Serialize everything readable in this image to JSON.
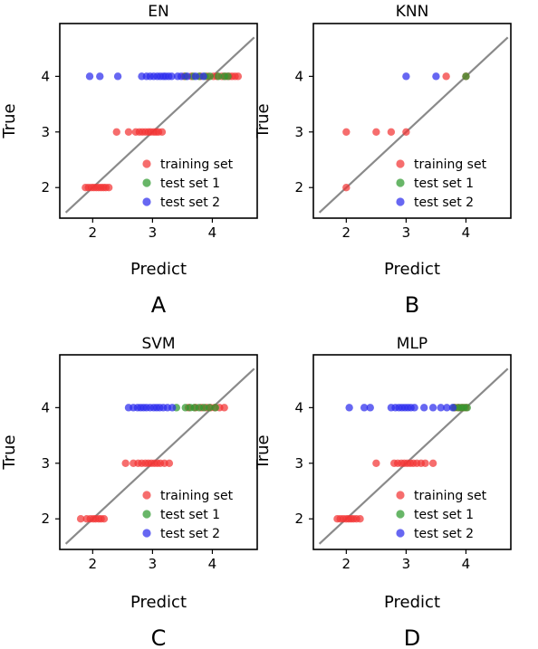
{
  "colors": {
    "training": "#f23434",
    "test1": "#2e9a2e",
    "test2": "#2d2ded",
    "identity": "#8a8a8a"
  },
  "chart_data": [
    {
      "type": "scatter",
      "title": "EN",
      "panel_label": "A",
      "xlabel": "Predict",
      "ylabel": "True",
      "xlim": [
        1.45,
        4.75
      ],
      "ylim": [
        1.45,
        4.95
      ],
      "xticks": [
        "2",
        "3",
        "4"
      ],
      "yticks": [
        "2",
        "3",
        "4"
      ],
      "identity_line": [
        1.55,
        4.7
      ],
      "legend": "bottom-right",
      "series": [
        {
          "name": "training set",
          "key": "training",
          "points": [
            [
              1.88,
              2
            ],
            [
              1.93,
              2
            ],
            [
              1.98,
              2
            ],
            [
              2.02,
              2
            ],
            [
              2.06,
              2
            ],
            [
              2.1,
              2
            ],
            [
              2.14,
              2
            ],
            [
              2.18,
              2
            ],
            [
              2.22,
              2
            ],
            [
              2.27,
              2
            ],
            [
              2.4,
              3
            ],
            [
              2.6,
              3
            ],
            [
              2.72,
              3
            ],
            [
              2.78,
              3
            ],
            [
              2.83,
              3
            ],
            [
              2.88,
              3
            ],
            [
              2.93,
              3
            ],
            [
              2.97,
              3
            ],
            [
              3.02,
              3
            ],
            [
              3.06,
              3
            ],
            [
              3.1,
              3
            ],
            [
              3.16,
              3
            ],
            [
              3.53,
              4
            ],
            [
              3.65,
              4
            ],
            [
              3.8,
              4
            ],
            [
              3.92,
              4
            ],
            [
              4.02,
              4
            ],
            [
              4.08,
              4
            ],
            [
              4.16,
              4
            ],
            [
              4.22,
              4
            ],
            [
              4.28,
              4
            ],
            [
              4.33,
              4
            ],
            [
              4.38,
              4
            ],
            [
              4.43,
              4
            ]
          ]
        },
        {
          "name": "test set 1",
          "key": "test1",
          "points": [
            [
              3.55,
              4
            ],
            [
              3.68,
              4
            ],
            [
              3.78,
              4
            ],
            [
              3.88,
              4
            ],
            [
              3.96,
              4
            ],
            [
              4.1,
              4
            ],
            [
              4.2,
              4
            ],
            [
              4.26,
              4
            ]
          ]
        },
        {
          "name": "test set 2",
          "key": "test2",
          "points": [
            [
              1.95,
              4
            ],
            [
              2.12,
              4
            ],
            [
              2.42,
              4
            ],
            [
              2.82,
              4
            ],
            [
              2.9,
              4
            ],
            [
              2.96,
              4
            ],
            [
              3.02,
              4
            ],
            [
              3.08,
              4
            ],
            [
              3.13,
              4
            ],
            [
              3.18,
              4
            ],
            [
              3.22,
              4
            ],
            [
              3.27,
              4
            ],
            [
              3.32,
              4
            ],
            [
              3.42,
              4
            ],
            [
              3.48,
              4
            ],
            [
              3.58,
              4
            ],
            [
              3.72,
              4
            ],
            [
              3.85,
              4
            ]
          ]
        }
      ]
    },
    {
      "type": "scatter",
      "title": "KNN",
      "panel_label": "B",
      "xlabel": "Predict",
      "ylabel": "True",
      "xlim": [
        1.45,
        4.75
      ],
      "ylim": [
        1.45,
        4.95
      ],
      "xticks": [
        "2",
        "3",
        "4"
      ],
      "yticks": [
        "2",
        "3",
        "4"
      ],
      "identity_line": [
        1.55,
        4.7
      ],
      "legend": "bottom-right",
      "series": [
        {
          "name": "training set",
          "key": "training",
          "points": [
            [
              2,
              2
            ],
            [
              2,
              3
            ],
            [
              2.5,
              3
            ],
            [
              2.75,
              3
            ],
            [
              3,
              3
            ],
            [
              3.67,
              4
            ],
            [
              4,
              4
            ]
          ]
        },
        {
          "name": "test set 1",
          "key": "test1",
          "points": [
            [
              4,
              4
            ]
          ]
        },
        {
          "name": "test set 2",
          "key": "test2",
          "points": [
            [
              3,
              4
            ],
            [
              3.5,
              4
            ]
          ]
        }
      ]
    },
    {
      "type": "scatter",
      "title": "SVM",
      "panel_label": "C",
      "xlabel": "Predict",
      "ylabel": "True",
      "xlim": [
        1.45,
        4.75
      ],
      "ylim": [
        1.45,
        4.95
      ],
      "xticks": [
        "2",
        "3",
        "4"
      ],
      "yticks": [
        "2",
        "3",
        "4"
      ],
      "identity_line": [
        1.55,
        4.7
      ],
      "legend": "bottom-right",
      "series": [
        {
          "name": "training set",
          "key": "training",
          "points": [
            [
              1.8,
              2
            ],
            [
              1.9,
              2
            ],
            [
              1.96,
              2
            ],
            [
              2.01,
              2
            ],
            [
              2.05,
              2
            ],
            [
              2.1,
              2
            ],
            [
              2.14,
              2
            ],
            [
              2.19,
              2
            ],
            [
              2.55,
              3
            ],
            [
              2.68,
              3
            ],
            [
              2.76,
              3
            ],
            [
              2.82,
              3
            ],
            [
              2.88,
              3
            ],
            [
              2.93,
              3
            ],
            [
              2.98,
              3
            ],
            [
              3.03,
              3
            ],
            [
              3.08,
              3
            ],
            [
              3.13,
              3
            ],
            [
              3.2,
              3
            ],
            [
              3.28,
              3
            ],
            [
              3.6,
              4
            ],
            [
              3.72,
              4
            ],
            [
              3.82,
              4
            ],
            [
              3.9,
              4
            ],
            [
              3.97,
              4
            ],
            [
              4.04,
              4
            ],
            [
              4.12,
              4
            ],
            [
              4.2,
              4
            ]
          ]
        },
        {
          "name": "test set 1",
          "key": "test1",
          "points": [
            [
              3.4,
              4
            ],
            [
              3.55,
              4
            ],
            [
              3.63,
              4
            ],
            [
              3.7,
              4
            ],
            [
              3.78,
              4
            ],
            [
              3.86,
              4
            ],
            [
              3.95,
              4
            ],
            [
              4.05,
              4
            ]
          ]
        },
        {
          "name": "test set 2",
          "key": "test2",
          "points": [
            [
              2.6,
              4
            ],
            [
              2.68,
              4
            ],
            [
              2.75,
              4
            ],
            [
              2.8,
              4
            ],
            [
              2.85,
              4
            ],
            [
              2.9,
              4
            ],
            [
              2.96,
              4
            ],
            [
              3.02,
              4
            ],
            [
              3.07,
              4
            ],
            [
              3.12,
              4
            ],
            [
              3.18,
              4
            ],
            [
              3.25,
              4
            ],
            [
              3.33,
              4
            ]
          ]
        }
      ]
    },
    {
      "type": "scatter",
      "title": "MLP",
      "panel_label": "D",
      "xlabel": "Predict",
      "ylabel": "True",
      "xlim": [
        1.45,
        4.75
      ],
      "ylim": [
        1.45,
        4.95
      ],
      "xticks": [
        "2",
        "3",
        "4"
      ],
      "yticks": [
        "2",
        "3",
        "4"
      ],
      "identity_line": [
        1.55,
        4.7
      ],
      "legend": "bottom-right",
      "series": [
        {
          "name": "training set",
          "key": "training",
          "points": [
            [
              1.85,
              2
            ],
            [
              1.9,
              2
            ],
            [
              1.95,
              2
            ],
            [
              2,
              2
            ],
            [
              2.04,
              2
            ],
            [
              2.08,
              2
            ],
            [
              2.12,
              2
            ],
            [
              2.17,
              2
            ],
            [
              2.23,
              2
            ],
            [
              2.5,
              3
            ],
            [
              2.8,
              3
            ],
            [
              2.86,
              3
            ],
            [
              2.92,
              3
            ],
            [
              2.97,
              3
            ],
            [
              3.02,
              3
            ],
            [
              3.07,
              3
            ],
            [
              3.12,
              3
            ],
            [
              3.18,
              3
            ],
            [
              3.25,
              3
            ],
            [
              3.32,
              3
            ],
            [
              3.45,
              3
            ],
            [
              3.82,
              4
            ],
            [
              3.88,
              4
            ],
            [
              3.94,
              4
            ],
            [
              4,
              4
            ]
          ]
        },
        {
          "name": "test set 1",
          "key": "test1",
          "points": [
            [
              3.8,
              4
            ],
            [
              3.87,
              4
            ],
            [
              3.92,
              4
            ],
            [
              3.97,
              4
            ],
            [
              4.02,
              4
            ]
          ]
        },
        {
          "name": "test set 2",
          "key": "test2",
          "points": [
            [
              2.05,
              4
            ],
            [
              2.3,
              4
            ],
            [
              2.4,
              4
            ],
            [
              2.75,
              4
            ],
            [
              2.82,
              4
            ],
            [
              2.88,
              4
            ],
            [
              2.93,
              4
            ],
            [
              2.98,
              4
            ],
            [
              3.03,
              4
            ],
            [
              3.08,
              4
            ],
            [
              3.14,
              4
            ],
            [
              3.3,
              4
            ],
            [
              3.45,
              4
            ],
            [
              3.58,
              4
            ],
            [
              3.68,
              4
            ],
            [
              3.78,
              4
            ]
          ]
        }
      ]
    }
  ]
}
